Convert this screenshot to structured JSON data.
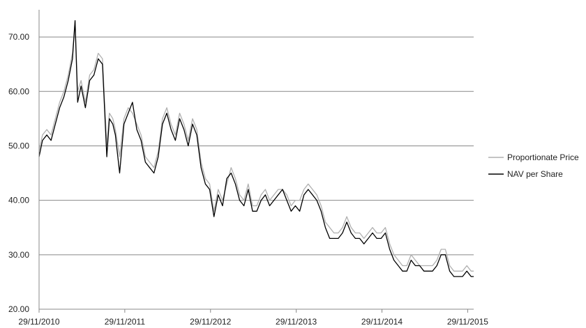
{
  "chart_data": {
    "type": "line",
    "title": "",
    "xlabel": "",
    "ylabel": "",
    "ylim": [
      20,
      75
    ],
    "yticks": [
      "20.00",
      "30.00",
      "40.00",
      "50.00",
      "60.00",
      "70.00"
    ],
    "ytick_values": [
      20,
      30,
      40,
      50,
      60,
      70
    ],
    "xticks": [
      "29/11/2010",
      "29/11/2011",
      "29/11/2012",
      "29/11/2013",
      "29/11/2014",
      "29/11/2015"
    ],
    "xtick_values": [
      2010.91,
      2011.91,
      2012.91,
      2013.91,
      2014.91,
      2015.91
    ],
    "xlim": [
      2010.91,
      2015.98
    ],
    "grid": "horizontal",
    "legend": "right",
    "series": [
      {
        "name": "Proportionate Price",
        "color": "#b0b0b0",
        "x": [
          2010.91,
          2010.95,
          2011.0,
          2011.05,
          2011.1,
          2011.15,
          2011.2,
          2011.25,
          2011.3,
          2011.33,
          2011.36,
          2011.4,
          2011.45,
          2011.5,
          2011.55,
          2011.6,
          2011.65,
          2011.7,
          2011.73,
          2011.77,
          2011.8,
          2011.85,
          2011.9,
          2011.95,
          2012.0,
          2012.05,
          2012.1,
          2012.15,
          2012.2,
          2012.25,
          2012.3,
          2012.35,
          2012.4,
          2012.45,
          2012.5,
          2012.55,
          2012.6,
          2012.65,
          2012.7,
          2012.75,
          2012.8,
          2012.85,
          2012.9,
          2012.95,
          2013.0,
          2013.05,
          2013.1,
          2013.15,
          2013.2,
          2013.25,
          2013.3,
          2013.35,
          2013.4,
          2013.45,
          2013.5,
          2013.55,
          2013.6,
          2013.65,
          2013.7,
          2013.75,
          2013.8,
          2013.85,
          2013.9,
          2013.95,
          2014.0,
          2014.05,
          2014.1,
          2014.15,
          2014.2,
          2014.25,
          2014.3,
          2014.35,
          2014.4,
          2014.45,
          2014.5,
          2014.55,
          2014.6,
          2014.65,
          2014.7,
          2014.75,
          2014.8,
          2014.85,
          2014.9,
          2014.95,
          2015.0,
          2015.05,
          2015.1,
          2015.15,
          2015.2,
          2015.25,
          2015.3,
          2015.35,
          2015.4,
          2015.45,
          2015.5,
          2015.55,
          2015.6,
          2015.65,
          2015.7,
          2015.75,
          2015.8,
          2015.85,
          2015.9,
          2015.95,
          2015.98
        ],
        "values": [
          49,
          52,
          53,
          52,
          55,
          58,
          60,
          63,
          67,
          73,
          60,
          62,
          58,
          63,
          64,
          67,
          66,
          50,
          56,
          55,
          53,
          48,
          55,
          57,
          56,
          54,
          52,
          48,
          47,
          46,
          49,
          55,
          57,
          54,
          52,
          56,
          54,
          51,
          55,
          53,
          47,
          44,
          43,
          38,
          42,
          40,
          43,
          46,
          44,
          41,
          40,
          43,
          39,
          39,
          41,
          42,
          40,
          41,
          42,
          42,
          41,
          39,
          40,
          40,
          42,
          43,
          42,
          41,
          39,
          36,
          35,
          34,
          34,
          35,
          37,
          35,
          34,
          34,
          33,
          34,
          35,
          34,
          34,
          35,
          32,
          30,
          29,
          28,
          28,
          30,
          29,
          28,
          28,
          28,
          28,
          29,
          31,
          31,
          28,
          27,
          27,
          27,
          28,
          27,
          27
        ]
      },
      {
        "name": "NAV per Share",
        "color": "#000000",
        "x": [
          2010.91,
          2010.95,
          2011.0,
          2011.05,
          2011.1,
          2011.15,
          2011.2,
          2011.25,
          2011.3,
          2011.33,
          2011.36,
          2011.4,
          2011.45,
          2011.5,
          2011.55,
          2011.6,
          2011.65,
          2011.7,
          2011.73,
          2011.77,
          2011.8,
          2011.85,
          2011.9,
          2011.95,
          2012.0,
          2012.05,
          2012.1,
          2012.15,
          2012.2,
          2012.25,
          2012.3,
          2012.35,
          2012.4,
          2012.45,
          2012.5,
          2012.55,
          2012.6,
          2012.65,
          2012.7,
          2012.75,
          2012.8,
          2012.85,
          2012.9,
          2012.95,
          2013.0,
          2013.05,
          2013.1,
          2013.15,
          2013.2,
          2013.25,
          2013.3,
          2013.35,
          2013.4,
          2013.45,
          2013.5,
          2013.55,
          2013.6,
          2013.65,
          2013.7,
          2013.75,
          2013.8,
          2013.85,
          2013.9,
          2013.95,
          2014.0,
          2014.05,
          2014.1,
          2014.15,
          2014.2,
          2014.25,
          2014.3,
          2014.35,
          2014.4,
          2014.45,
          2014.5,
          2014.55,
          2014.6,
          2014.65,
          2014.7,
          2014.75,
          2014.8,
          2014.85,
          2014.9,
          2014.95,
          2015.0,
          2015.05,
          2015.1,
          2015.15,
          2015.2,
          2015.25,
          2015.3,
          2015.35,
          2015.4,
          2015.45,
          2015.5,
          2015.55,
          2015.6,
          2015.65,
          2015.7,
          2015.75,
          2015.8,
          2015.85,
          2015.9,
          2015.95,
          2015.98
        ],
        "values": [
          48,
          51,
          52,
          51,
          54,
          57,
          59,
          62,
          66,
          73,
          58,
          61,
          57,
          62,
          63,
          66,
          65,
          48,
          55,
          54,
          52,
          45,
          54,
          56,
          58,
          53,
          51,
          47,
          46,
          45,
          48,
          54,
          56,
          53,
          51,
          55,
          53,
          50,
          54,
          52,
          46,
          43,
          42,
          37,
          41,
          39,
          44,
          45,
          43,
          40,
          39,
          42,
          38,
          38,
          40,
          41,
          39,
          40,
          41,
          42,
          40,
          38,
          39,
          38,
          41,
          42,
          41,
          40,
          38,
          35,
          33,
          33,
          33,
          34,
          36,
          34,
          33,
          33,
          32,
          33,
          34,
          33,
          33,
          34,
          31,
          29,
          28,
          27,
          27,
          29,
          28,
          28,
          27,
          27,
          27,
          28,
          30,
          30,
          27,
          26,
          26,
          26,
          27,
          26,
          26
        ]
      }
    ]
  }
}
